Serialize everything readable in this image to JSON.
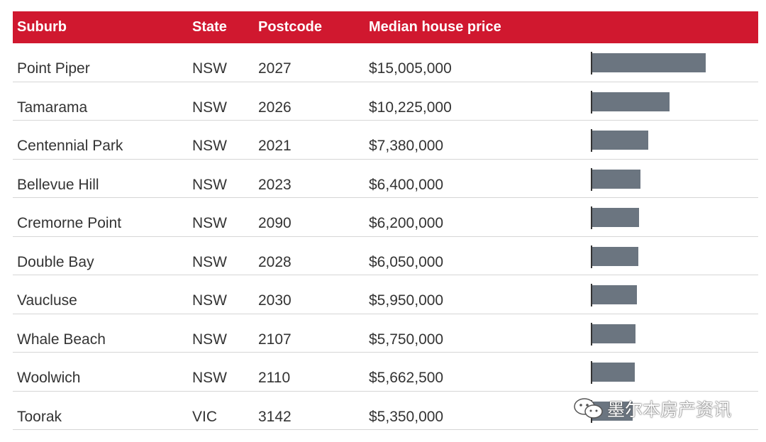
{
  "chart_data": {
    "type": "table",
    "columns": [
      "Suburb",
      "State",
      "Postcode",
      "Median house price"
    ],
    "rows": [
      {
        "suburb": "Point Piper",
        "state": "NSW",
        "postcode": "2027",
        "price_label": "$15,005,000",
        "value": 15005000
      },
      {
        "suburb": "Tamarama",
        "state": "NSW",
        "postcode": "2026",
        "price_label": "$10,225,000",
        "value": 10225000
      },
      {
        "suburb": "Centennial Park",
        "state": "NSW",
        "postcode": "2021",
        "price_label": "$7,380,000",
        "value": 7380000
      },
      {
        "suburb": "Bellevue Hill",
        "state": "NSW",
        "postcode": "2023",
        "price_label": "$6,400,000",
        "value": 6400000
      },
      {
        "suburb": "Cremorne Point",
        "state": "NSW",
        "postcode": "2090",
        "price_label": "$6,200,000",
        "value": 6200000
      },
      {
        "suburb": "Double Bay",
        "state": "NSW",
        "postcode": "2028",
        "price_label": "$6,050,000",
        "value": 6050000
      },
      {
        "suburb": "Vaucluse",
        "state": "NSW",
        "postcode": "2030",
        "price_label": "$5,950,000",
        "value": 5950000
      },
      {
        "suburb": "Whale Beach",
        "state": "NSW",
        "postcode": "2107",
        "price_label": "$5,750,000",
        "value": 5750000
      },
      {
        "suburb": "Woolwich",
        "state": "NSW",
        "postcode": "2110",
        "price_label": "$5,662,500",
        "value": 5662500
      },
      {
        "suburb": "Toorak",
        "state": "VIC",
        "postcode": "3142",
        "price_label": "$5,350,000",
        "value": 5350000
      }
    ],
    "bar_max": 15005000
  },
  "colors": {
    "header": "#d0182f",
    "bar": "#6b7580"
  },
  "watermark": {
    "text": "墨尔本房产资讯",
    "icon": "wechat-icon"
  }
}
